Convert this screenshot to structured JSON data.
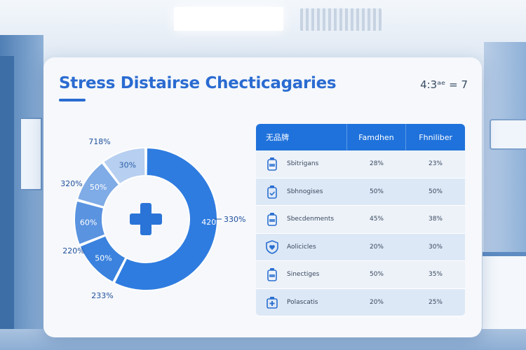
{
  "title": "Stress Distairse Checticagaries",
  "corner_text": "4:3ᵃᵉ  = 7",
  "colors": {
    "primary": "#1f72db",
    "title": "#2a6bd1",
    "seg_light": "#b7cff0",
    "seg_mid": "#7fabe6",
    "seg_medium": "#5a93e0",
    "seg_dark": "#3a82de",
    "seg_primary": "#2f7ce0",
    "cross": "#2a74d8"
  },
  "chart_data": [
    {
      "type": "pie",
      "variant": "donut",
      "center_icon": "medical-cross-icon",
      "segments": [
        {
          "value": 50,
          "inner_label": "420%",
          "outer_label": "330%",
          "color": "#2f7ce0"
        },
        {
          "value": 10,
          "inner_label": "50%",
          "outer_label": "233%",
          "color": "#3a82de"
        },
        {
          "value": 9,
          "inner_label": "60%",
          "outer_label": "220%",
          "color": "#5a93e0"
        },
        {
          "value": 9,
          "inner_label": "50%",
          "outer_label": "320%",
          "color": "#7fabe6"
        },
        {
          "value": 9,
          "inner_label": "30%",
          "outer_label": "718%",
          "color": "#b7cff0"
        }
      ]
    },
    {
      "type": "table",
      "columns": [
        "无品牌",
        "Famdhen",
        "Fhniliber"
      ],
      "rows": [
        {
          "icon": "bottle-icon",
          "name": "Sbitrigans",
          "a": "28%",
          "b": "23%"
        },
        {
          "icon": "bottle-check-icon",
          "name": "Sbhnogises",
          "a": "50%",
          "b": "50%"
        },
        {
          "icon": "bottle-icon",
          "name": "Sbecdenments",
          "a": "45%",
          "b": "38%"
        },
        {
          "icon": "shield-heart-icon",
          "name": "Aolicicles",
          "a": "20%",
          "b": "30%"
        },
        {
          "icon": "bottle-icon",
          "name": "Sinectiges",
          "a": "50%",
          "b": "35%"
        },
        {
          "icon": "medicine-box-icon",
          "name": "Polascatis",
          "a": "20%",
          "b": "25%"
        }
      ]
    }
  ]
}
